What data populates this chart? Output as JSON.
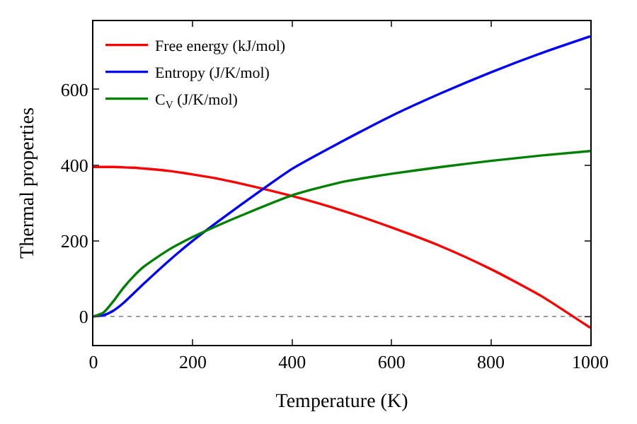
{
  "chart_data": {
    "type": "line",
    "xlabel": "Temperature (K)",
    "ylabel": "Thermal properties",
    "x": [
      0,
      20,
      40,
      60,
      80,
      100,
      150,
      200,
      250,
      300,
      400,
      500,
      600,
      700,
      800,
      900,
      1000
    ],
    "xlim": [
      0,
      1000
    ],
    "xticks": [
      0,
      200,
      400,
      600,
      800,
      1000
    ],
    "ylim": [
      -75,
      780
    ],
    "yticks": [
      0,
      200,
      400,
      600
    ],
    "series": [
      {
        "name": "Free energy (kJ/mol)",
        "color": "#ff0000",
        "values": [
          395,
          395,
          395,
          394,
          393,
          391,
          385,
          375,
          364,
          350,
          318,
          280,
          235,
          185,
          125,
          55,
          -30
        ]
      },
      {
        "name": "Entropy (J/K/mol)",
        "color": "#0000ff",
        "values": [
          0,
          3,
          15,
          35,
          60,
          85,
          145,
          200,
          250,
          298,
          390,
          462,
          530,
          590,
          645,
          695,
          740
        ]
      },
      {
        "name": "C$_{V}$ (J/K/mol)",
        "color": "#008000",
        "values": [
          0,
          10,
          40,
          75,
          105,
          130,
          175,
          210,
          240,
          268,
          320,
          355,
          377,
          395,
          411,
          425,
          437
        ]
      }
    ],
    "ref_lines": [
      {
        "axis": "y",
        "value": 0,
        "color": "#808080",
        "line_style": "dotted"
      }
    ],
    "legend": "top left",
    "grid": false,
    "marker": "none",
    "line_style": "solid"
  }
}
